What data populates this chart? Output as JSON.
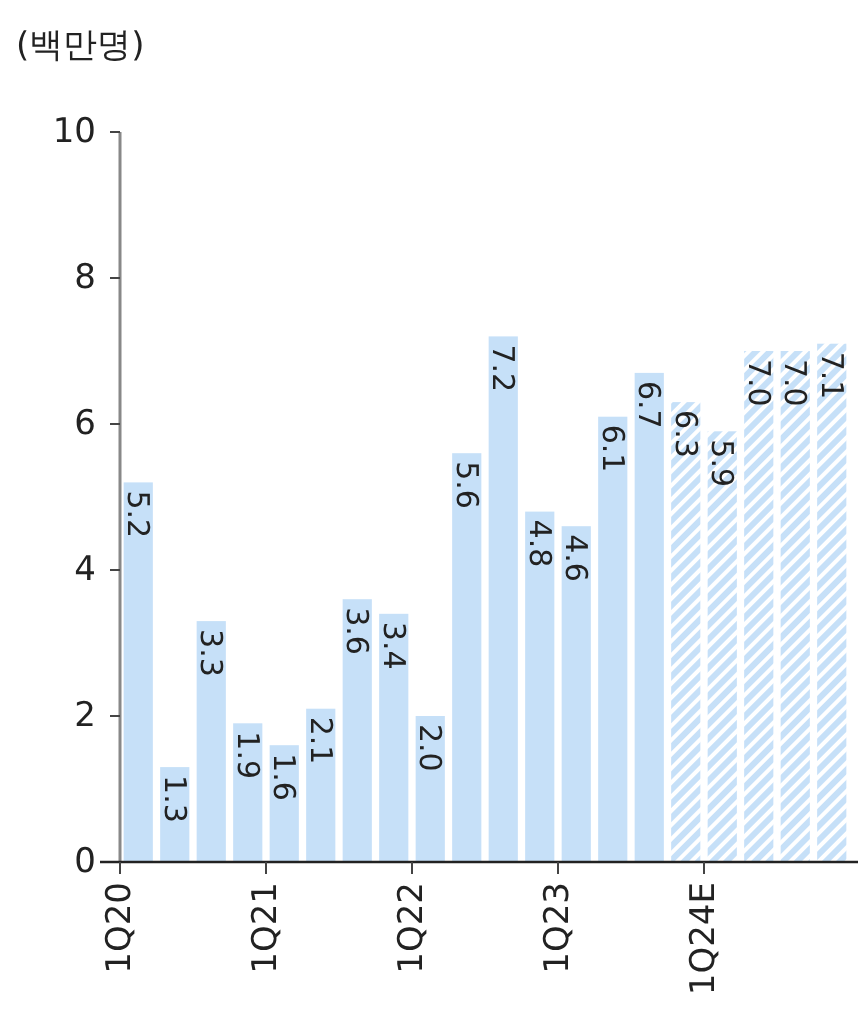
{
  "chart_data": {
    "type": "bar",
    "ylabel": "(백만명)",
    "categories": [
      "1Q20",
      null,
      null,
      null,
      "1Q21",
      null,
      null,
      null,
      "1Q22",
      null,
      null,
      null,
      "1Q23",
      null,
      null,
      null,
      "1Q24E",
      null,
      null,
      null
    ],
    "series": [
      {
        "color": "#c6e0f8",
        "values": [
          5.2,
          1.3,
          3.3,
          1.9,
          1.6,
          2.1,
          3.6,
          3.4,
          2.0,
          5.6,
          7.2,
          4.8,
          4.6,
          6.1,
          6.7,
          null,
          null,
          null,
          null,
          null
        ],
        "value_labels": [
          "5.2",
          "1.3",
          "3.3",
          "1.9",
          "1.6",
          "2.1",
          "3.6",
          "3.4",
          "2.0",
          "5.6",
          "7.2",
          "4.8",
          "4.6",
          "6.1",
          "6.7",
          null,
          null,
          null,
          null,
          null
        ]
      },
      {
        "color": "#c6e0f8",
        "values": [
          null,
          null,
          null,
          null,
          null,
          null,
          null,
          null,
          null,
          null,
          null,
          null,
          null,
          null,
          null,
          6.3,
          5.9,
          7.0,
          7.0,
          7.1
        ],
        "value_labels": [
          null,
          null,
          null,
          null,
          null,
          null,
          null,
          null,
          null,
          null,
          null,
          null,
          null,
          null,
          null,
          "6.3",
          "5.9",
          "7.0",
          "7.0",
          "7.1"
        ]
      }
    ],
    "ylim": [
      0,
      10
    ],
    "yticks": [
      0,
      2,
      4,
      6,
      8,
      10
    ]
  }
}
